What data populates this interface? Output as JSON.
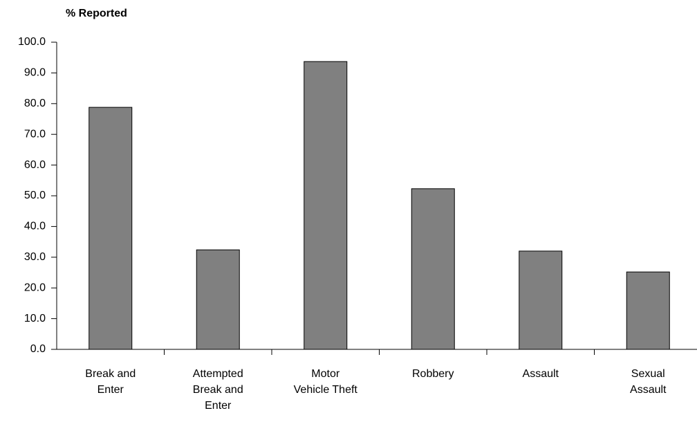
{
  "chart_data": {
    "type": "bar",
    "title": "% Reported",
    "categories": [
      "Break and Enter",
      "Attempted Break and Enter",
      "Motor Vehicle Theft",
      "Robbery",
      "Assault",
      "Sexual Assault"
    ],
    "values": [
      78.8,
      32.4,
      93.7,
      52.3,
      32.0,
      25.2
    ],
    "color": "#808080",
    "ylim": [
      0,
      100
    ],
    "yticks": [
      {
        "value": 0,
        "label": "0.0"
      },
      {
        "value": 10,
        "label": "10.0"
      },
      {
        "value": 20,
        "label": "20.0"
      },
      {
        "value": 30,
        "label": "30.0"
      },
      {
        "value": 40,
        "label": "40.0"
      },
      {
        "value": 50,
        "label": "50.0"
      },
      {
        "value": 60,
        "label": "60.0"
      },
      {
        "value": 70,
        "label": "70.0"
      },
      {
        "value": 80,
        "label": "80.0"
      },
      {
        "value": 90,
        "label": "90.0"
      },
      {
        "value": 100,
        "label": "100.0"
      }
    ],
    "grid": false
  }
}
